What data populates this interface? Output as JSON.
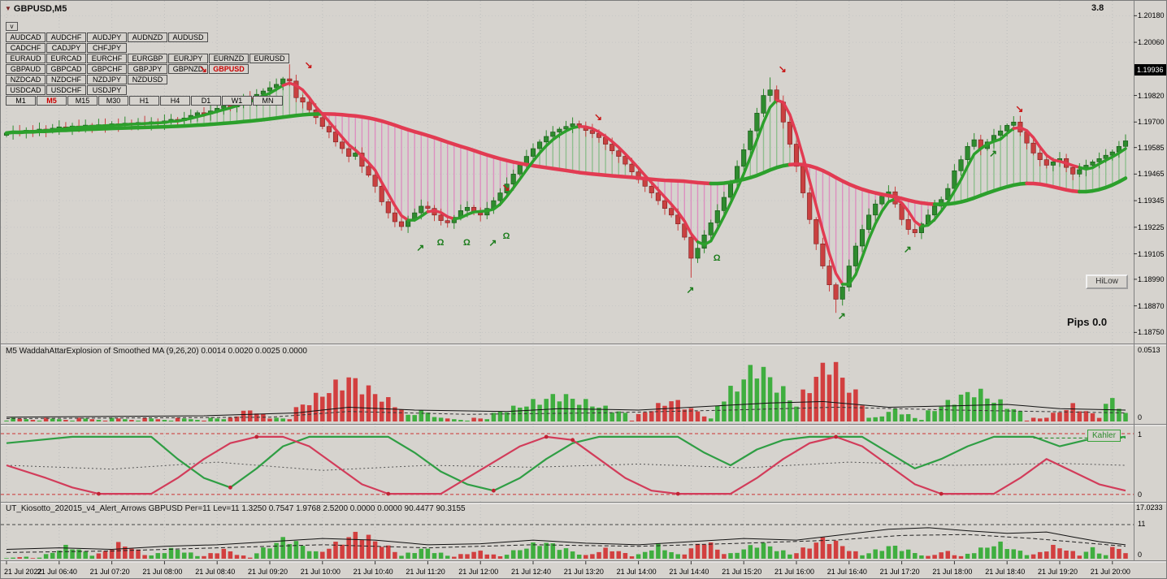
{
  "window": {
    "symbol_label": "GBPUSD,M5",
    "spread": "3.8",
    "dropdown_button": "v",
    "hilow_button": "HiLow",
    "pips_label": "Pips 0.0"
  },
  "watchlist": {
    "active": "GBPUSD",
    "rows": [
      [
        "AUDCAD",
        "AUDCHF",
        "AUDJPY",
        "AUDNZD",
        "AUDUSD"
      ],
      [
        "CADCHF",
        "CADJPY",
        "CHFJPY"
      ],
      [
        "EURAUD",
        "EURCAD",
        "EURCHF",
        "EURGBP",
        "EURJPY",
        "EURNZD",
        "EURUSD"
      ],
      [
        "GBPAUD",
        "GBPCAD",
        "GBPCHF",
        "GBPJPY",
        "GBPNZD",
        "GBPUSD"
      ],
      [
        "NZDCAD",
        "NZDCHF",
        "NZDJPY",
        "NZDUSD"
      ],
      [
        "USDCAD",
        "USDCHF",
        "USDJPY"
      ]
    ]
  },
  "timeframes": {
    "active": "M5",
    "items": [
      "M1",
      "M5",
      "M15",
      "M30",
      "H1",
      "H4",
      "D1",
      "W1",
      "MN"
    ]
  },
  "price_axis": {
    "current": "1.19936",
    "ticks": [
      "1.20180",
      "1.20060",
      "1.19820",
      "1.19700",
      "1.19585",
      "1.19465",
      "1.19345",
      "1.19225",
      "1.19105",
      "1.18990",
      "1.18870",
      "1.18750"
    ]
  },
  "time_axis": {
    "labels": [
      "21 Jul 2022",
      "21 Jul 06:40",
      "21 Jul 07:20",
      "21 Jul 08:00",
      "21 Jul 08:40",
      "21 Jul 09:20",
      "21 Jul 10:00",
      "21 Jul 10:40",
      "21 Jul 11:20",
      "21 Jul 12:00",
      "21 Jul 12:40",
      "21 Jul 13:20",
      "21 Jul 14:00",
      "21 Jul 14:40",
      "21 Jul 15:20",
      "21 Jul 16:00",
      "21 Jul 16:40",
      "21 Jul 17:20",
      "21 Jul 18:00",
      "21 Jul 18:40",
      "21 Jul 19:20",
      "21 Jul 20:00"
    ]
  },
  "panes": {
    "wae": {
      "label": "M5  WaddahAttarExplosion of Smoothed MA (9,26,20) 0.0014 0.0020 0.0025 0.0000",
      "axis_max": "0.0513",
      "axis_min": "0"
    },
    "kahler": {
      "badge": "Kahler",
      "axis_max": "1",
      "axis_min": "0"
    },
    "kiosotto": {
      "label": "UT_Kiosotto_202015_v4_Alert_Arrows GBPUSD Per=11 Lev=11 1.3250 0.7547 1.9768 2.5200 0.0000 0.0000 90.4477 90.3155",
      "axis_max": "17.0233",
      "axis_mid": "11",
      "axis_min": "0"
    }
  },
  "chart_data": {
    "type": "candlestick",
    "symbol": "GBPUSD",
    "period": "M5",
    "x_range": {
      "start": "21 Jul 2022 06:00",
      "end": "21 Jul 2022 20:10",
      "step_minutes": 5
    },
    "price_range": [
      1.187,
      1.2024
    ],
    "closes": [
      1.1965,
      1.19658,
      1.19652,
      1.19663,
      1.19656,
      1.19668,
      1.1966,
      1.19672,
      1.19678,
      1.1967,
      1.19682,
      1.19675,
      1.19686,
      1.19678,
      1.19688,
      1.19682,
      1.19692,
      1.19685,
      1.19695,
      1.19688,
      1.19698,
      1.19691,
      1.19701,
      1.19694,
      1.19705,
      1.19712,
      1.19706,
      1.19718,
      1.1973,
      1.19742,
      1.19736,
      1.1975,
      1.19762,
      1.19775,
      1.19768,
      1.19788,
      1.1981,
      1.198,
      1.19825,
      1.1984,
      1.19855,
      1.1987,
      1.19895,
      1.19885,
      1.1981,
      1.1979,
      1.19755,
      1.1972,
      1.1968,
      1.19655,
      1.1961,
      1.1958,
      1.19545,
      1.1956,
      1.195,
      1.1946,
      1.1941,
      1.1934,
      1.1929,
      1.1925,
      1.19228,
      1.1926,
      1.1929,
      1.1932,
      1.1931,
      1.1928,
      1.19255,
      1.19245,
      1.1927,
      1.193,
      1.19315,
      1.1929,
      1.1928,
      1.1931,
      1.19345,
      1.1938,
      1.1942,
      1.19465,
      1.19505,
      1.19545,
      1.1958,
      1.1961,
      1.19635,
      1.19655,
      1.19668,
      1.1968,
      1.19692,
      1.1968,
      1.19662,
      1.19648,
      1.1963,
      1.196,
      1.1957,
      1.19545,
      1.1951,
      1.19475,
      1.1944,
      1.1941,
      1.1938,
      1.19345,
      1.1931,
      1.1928,
      1.1924,
      1.1918,
      1.19085,
      1.1913,
      1.1919,
      1.19245,
      1.193,
      1.1936,
      1.1943,
      1.195,
      1.19575,
      1.1966,
      1.1974,
      1.1982,
      1.19845,
      1.1979,
      1.197,
      1.196,
      1.195,
      1.1938,
      1.1926,
      1.1915,
      1.1905,
      1.18965,
      1.189,
      1.18955,
      1.1905,
      1.1914,
      1.19215,
      1.1928,
      1.1933,
      1.19365,
      1.19385,
      1.1933,
      1.1926,
      1.19215,
      1.192,
      1.1924,
      1.1928,
      1.1932,
      1.1935,
      1.194,
      1.1948,
      1.1953,
      1.1959,
      1.1962,
      1.1958,
      1.1961,
      1.1964,
      1.1966,
      1.19685,
      1.197,
      1.19655,
      1.19605,
      1.1956,
      1.1953,
      1.19505,
      1.1952,
      1.19535,
      1.19495,
      1.19465,
      1.19485,
      1.19505,
      1.1952,
      1.19535,
      1.1955,
      1.19565,
      1.1959,
      1.19615
    ],
    "overlays": {
      "fast_ma_window": 4,
      "slow_ma_window": 44
    },
    "signals": {
      "sell": [
        {
          "i": 30,
          "p": 1.19935
        },
        {
          "i": 46,
          "p": 1.19955
        },
        {
          "i": 76,
          "p": 1.194
        },
        {
          "i": 90,
          "p": 1.1972
        },
        {
          "i": 118,
          "p": 1.19935
        },
        {
          "i": 154,
          "p": 1.19755
        }
      ],
      "buy": [
        {
          "i": 63,
          "p": 1.1913
        },
        {
          "i": 74,
          "p": 1.1915
        },
        {
          "i": 104,
          "p": 1.1894
        },
        {
          "i": 127,
          "p": 1.1882
        },
        {
          "i": 137,
          "p": 1.1912
        },
        {
          "i": 150,
          "p": 1.19555
        }
      ],
      "omega": [
        {
          "i": 66,
          "p": 1.1915
        },
        {
          "i": 70,
          "p": 1.1915
        },
        {
          "i": 76,
          "p": 1.1918
        },
        {
          "i": 108,
          "p": 1.1908
        }
      ]
    },
    "wae": {
      "max": 0.0513,
      "segments": [
        [
          34,
          40,
          0.01,
          "r"
        ],
        [
          44,
          60,
          0.036,
          "r"
        ],
        [
          60,
          66,
          0.009,
          "g"
        ],
        [
          74,
          94,
          0.022,
          "g"
        ],
        [
          96,
          106,
          0.018,
          "r"
        ],
        [
          108,
          120,
          0.047,
          "g"
        ],
        [
          120,
          130,
          0.0513,
          "r"
        ],
        [
          132,
          138,
          0.01,
          "g"
        ],
        [
          140,
          154,
          0.026,
          "g"
        ],
        [
          158,
          166,
          0.013,
          "r"
        ],
        [
          166,
          170,
          0.02,
          "g"
        ]
      ],
      "signal_line": [
        [
          0,
          0.003
        ],
        [
          30,
          0.004
        ],
        [
          44,
          0.006
        ],
        [
          52,
          0.01
        ],
        [
          62,
          0.008
        ],
        [
          76,
          0.007
        ],
        [
          84,
          0.009
        ],
        [
          96,
          0.008
        ],
        [
          108,
          0.011
        ],
        [
          116,
          0.013
        ],
        [
          124,
          0.014
        ],
        [
          134,
          0.01
        ],
        [
          144,
          0.011
        ],
        [
          152,
          0.012
        ],
        [
          160,
          0.009
        ],
        [
          170,
          0.008
        ]
      ],
      "signal_line2": [
        [
          0,
          0.002
        ],
        [
          40,
          0.003
        ],
        [
          52,
          0.007
        ],
        [
          70,
          0.005
        ],
        [
          90,
          0.006
        ],
        [
          110,
          0.008
        ],
        [
          126,
          0.01
        ],
        [
          144,
          0.008
        ],
        [
          170,
          0.006
        ]
      ]
    },
    "kahler": {
      "lower_level": 0.04,
      "upper_level": 1.0,
      "right_dashed_level": 0.93,
      "green_line": [
        [
          0,
          0.85
        ],
        [
          10,
          0.95
        ],
        [
          22,
          0.95
        ],
        [
          26,
          0.6
        ],
        [
          30,
          0.3
        ],
        [
          34,
          0.15
        ],
        [
          38,
          0.45
        ],
        [
          42,
          0.8
        ],
        [
          46,
          0.95
        ],
        [
          58,
          0.95
        ],
        [
          62,
          0.7
        ],
        [
          66,
          0.4
        ],
        [
          70,
          0.2
        ],
        [
          74,
          0.1
        ],
        [
          78,
          0.3
        ],
        [
          82,
          0.6
        ],
        [
          86,
          0.85
        ],
        [
          90,
          0.95
        ],
        [
          102,
          0.95
        ],
        [
          106,
          0.7
        ],
        [
          110,
          0.5
        ],
        [
          114,
          0.75
        ],
        [
          118,
          0.9
        ],
        [
          122,
          0.95
        ],
        [
          130,
          0.95
        ],
        [
          134,
          0.7
        ],
        [
          138,
          0.45
        ],
        [
          142,
          0.6
        ],
        [
          146,
          0.8
        ],
        [
          150,
          0.95
        ],
        [
          156,
          0.95
        ],
        [
          160,
          0.8
        ],
        [
          164,
          0.9
        ],
        [
          170,
          0.95
        ]
      ],
      "red_line": [
        [
          0,
          0.5
        ],
        [
          6,
          0.3
        ],
        [
          10,
          0.15
        ],
        [
          14,
          0.05
        ],
        [
          22,
          0.05
        ],
        [
          26,
          0.3
        ],
        [
          30,
          0.6
        ],
        [
          34,
          0.85
        ],
        [
          38,
          0.95
        ],
        [
          42,
          0.95
        ],
        [
          46,
          0.8
        ],
        [
          50,
          0.5
        ],
        [
          54,
          0.2
        ],
        [
          58,
          0.05
        ],
        [
          66,
          0.05
        ],
        [
          70,
          0.3
        ],
        [
          74,
          0.55
        ],
        [
          78,
          0.8
        ],
        [
          82,
          0.95
        ],
        [
          86,
          0.9
        ],
        [
          90,
          0.6
        ],
        [
          94,
          0.3
        ],
        [
          98,
          0.1
        ],
        [
          102,
          0.05
        ],
        [
          110,
          0.05
        ],
        [
          114,
          0.3
        ],
        [
          118,
          0.6
        ],
        [
          122,
          0.85
        ],
        [
          126,
          0.95
        ],
        [
          130,
          0.8
        ],
        [
          134,
          0.5
        ],
        [
          138,
          0.2
        ],
        [
          142,
          0.05
        ],
        [
          150,
          0.05
        ],
        [
          154,
          0.3
        ],
        [
          158,
          0.6
        ],
        [
          162,
          0.4
        ],
        [
          166,
          0.2
        ],
        [
          170,
          0.1
        ]
      ],
      "mid_dotted": [
        [
          0,
          0.5
        ],
        [
          16,
          0.44
        ],
        [
          32,
          0.55
        ],
        [
          48,
          0.42
        ],
        [
          64,
          0.5
        ],
        [
          80,
          0.47
        ],
        [
          96,
          0.52
        ],
        [
          112,
          0.46
        ],
        [
          128,
          0.55
        ],
        [
          144,
          0.5
        ],
        [
          160,
          0.53
        ],
        [
          170,
          0.5
        ]
      ]
    },
    "kiosotto": {
      "max": 17.0233,
      "level": 11,
      "segments": [
        [
          6,
          13,
          5,
          "g"
        ],
        [
          14,
          21,
          6,
          "r"
        ],
        [
          22,
          29,
          4,
          "g"
        ],
        [
          30,
          36,
          3.5,
          "r"
        ],
        [
          38,
          47,
          8,
          "g"
        ],
        [
          48,
          59,
          10,
          "r"
        ],
        [
          60,
          67,
          4,
          "g"
        ],
        [
          68,
          75,
          3,
          "r"
        ],
        [
          76,
          87,
          6.5,
          "g"
        ],
        [
          88,
          95,
          4,
          "r"
        ],
        [
          96,
          102,
          5,
          "g"
        ],
        [
          103,
          109,
          7,
          "r"
        ],
        [
          110,
          119,
          6,
          "g"
        ],
        [
          120,
          129,
          8,
          "r"
        ],
        [
          130,
          139,
          5,
          "g"
        ],
        [
          140,
          145,
          3,
          "r"
        ],
        [
          146,
          155,
          6,
          "g"
        ],
        [
          156,
          163,
          5,
          "r"
        ],
        [
          163,
          167,
          4,
          "g"
        ],
        [
          167,
          170,
          6,
          "r"
        ]
      ],
      "line_solid": [
        [
          0,
          3
        ],
        [
          8,
          3.5
        ],
        [
          16,
          3
        ],
        [
          24,
          4
        ],
        [
          32,
          4.5
        ],
        [
          40,
          5.5
        ],
        [
          48,
          6.5
        ],
        [
          56,
          6
        ],
        [
          64,
          4.5
        ],
        [
          72,
          4.8
        ],
        [
          80,
          6
        ],
        [
          88,
          5
        ],
        [
          96,
          4.5
        ],
        [
          104,
          5.5
        ],
        [
          112,
          6.5
        ],
        [
          120,
          6
        ],
        [
          128,
          8
        ],
        [
          134,
          9.5
        ],
        [
          140,
          10
        ],
        [
          146,
          9
        ],
        [
          152,
          8.2
        ],
        [
          158,
          8.6
        ],
        [
          162,
          7
        ],
        [
          166,
          5.5
        ],
        [
          170,
          4.5
        ]
      ],
      "line_dashed": [
        [
          0,
          2
        ],
        [
          16,
          2.5
        ],
        [
          32,
          3.5
        ],
        [
          48,
          4.5
        ],
        [
          64,
          3.5
        ],
        [
          80,
          4.5
        ],
        [
          96,
          4
        ],
        [
          112,
          5
        ],
        [
          126,
          6
        ],
        [
          136,
          7.5
        ],
        [
          146,
          7.8
        ],
        [
          156,
          6.5
        ],
        [
          170,
          4
        ]
      ]
    },
    "colors": {
      "up": "#2e8b2e",
      "down": "#c94040",
      "up_edge": "#145214",
      "down_edge": "#7a1f1f",
      "ma_up": "#2ca02c",
      "ma_down": "#e23b52",
      "stripe_up": "#8fbf8f",
      "stripe_down": "#dd8fc0",
      "hist_green": "#3fae3f",
      "hist_red": "#d23f3f",
      "osc_green": "#2f9e44",
      "osc_red": "#d23c5a",
      "signal_sell": "#c81919",
      "signal_buy": "#1d7d1d"
    }
  }
}
